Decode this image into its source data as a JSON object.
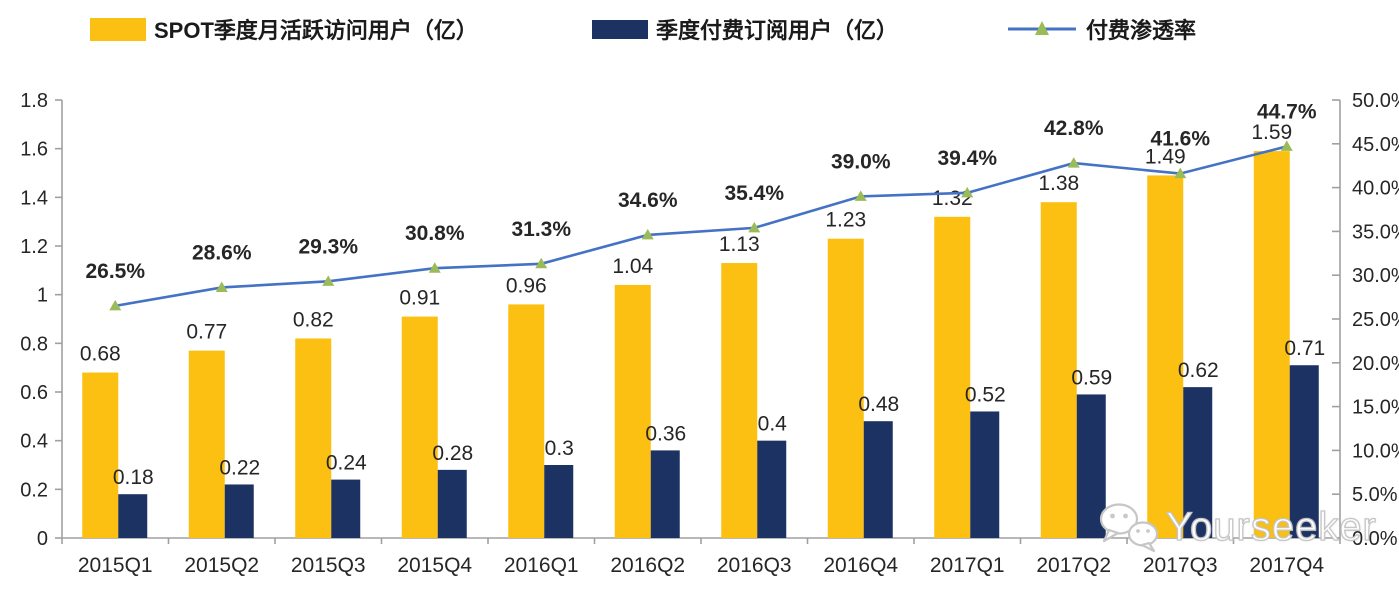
{
  "chart_data": {
    "type": "bar",
    "subtype": "grouped-bars-with-line-combo",
    "categories": [
      "2015Q1",
      "2015Q2",
      "2015Q3",
      "2015Q4",
      "2016Q1",
      "2016Q2",
      "2016Q3",
      "2016Q4",
      "2017Q1",
      "2017Q2",
      "2017Q3",
      "2017Q4"
    ],
    "series": [
      {
        "name": "SPOT季度月活跃访问用户（亿）",
        "type": "bar",
        "axis": "left",
        "color": "#FBC011",
        "values": [
          0.68,
          0.77,
          0.82,
          0.91,
          0.96,
          1.04,
          1.13,
          1.23,
          1.32,
          1.38,
          1.49,
          1.59
        ],
        "labels": [
          "0.68",
          "0.77",
          "0.82",
          "0.91",
          "0.96",
          "1.04",
          "1.13",
          "1.23",
          "1.32",
          "1.38",
          "1.49",
          "1.59"
        ]
      },
      {
        "name": "季度付费订阅用户（亿）",
        "type": "bar",
        "axis": "left",
        "color": "#1C3263",
        "values": [
          0.18,
          0.22,
          0.24,
          0.28,
          0.3,
          0.36,
          0.4,
          0.48,
          0.52,
          0.59,
          0.62,
          0.71
        ],
        "labels": [
          "0.18",
          "0.22",
          "0.24",
          "0.28",
          "0.3",
          "0.36",
          "0.4",
          "0.48",
          "0.52",
          "0.59",
          "0.62",
          "0.71"
        ]
      },
      {
        "name": "付费渗透率",
        "type": "line",
        "axis": "right",
        "color": "#4472C4",
        "marker": "triangle",
        "marker_color": "#9BBB59",
        "values": [
          26.5,
          28.6,
          29.3,
          30.8,
          31.3,
          34.6,
          35.4,
          39.0,
          39.4,
          42.8,
          41.6,
          44.7
        ],
        "labels": [
          "26.5%",
          "28.6%",
          "29.3%",
          "30.8%",
          "31.3%",
          "34.6%",
          "35.4%",
          "39.0%",
          "39.4%",
          "42.8%",
          "41.6%",
          "44.7%"
        ]
      }
    ],
    "left_axis": {
      "min": 0,
      "max": 1.8,
      "step": 0.2,
      "ticks": [
        "0",
        "0.2",
        "0.4",
        "0.6",
        "0.8",
        "1",
        "1.2",
        "1.4",
        "1.6",
        "1.8"
      ]
    },
    "right_axis": {
      "min": 0,
      "max": 50,
      "step": 5,
      "ticks": [
        "0.0%",
        "5.0%",
        "10.0%",
        "15.0%",
        "20.0%",
        "25.0%",
        "30.0%",
        "35.0%",
        "40.0%",
        "45.0%",
        "50.0%"
      ]
    },
    "grid": false,
    "legend_position": "top",
    "title": "",
    "xlabel": "",
    "ylabel": ""
  },
  "watermark": {
    "text": "Yourseeker",
    "icon": "wechat-icon"
  }
}
